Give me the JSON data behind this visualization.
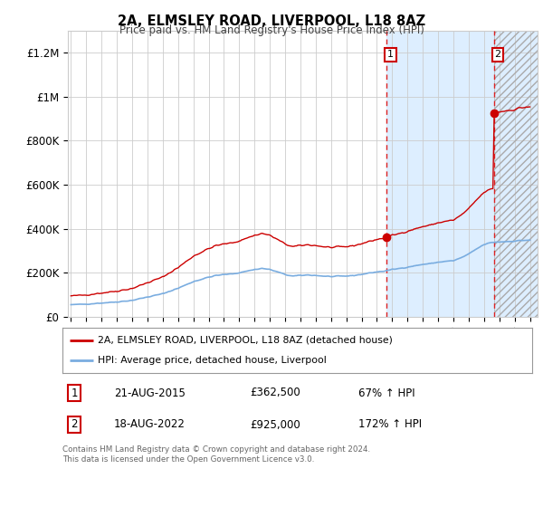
{
  "title": "2A, ELMSLEY ROAD, LIVERPOOL, L18 8AZ",
  "subtitle": "Price paid vs. HM Land Registry's House Price Index (HPI)",
  "ylabel_ticks": [
    "£0",
    "£200K",
    "£400K",
    "£600K",
    "£800K",
    "£1M",
    "£1.2M"
  ],
  "ytick_values": [
    0,
    200000,
    400000,
    600000,
    800000,
    1000000,
    1200000
  ],
  "ylim": [
    0,
    1300000
  ],
  "xlim_start": 1994.8,
  "xlim_end": 2025.5,
  "hpi_color": "#7aade0",
  "property_color": "#cc0000",
  "shaded_color": "#ddeeff",
  "hatch_color": "#cccccc",
  "legend_label1": "2A, ELMSLEY ROAD, LIVERPOOL, L18 8AZ (detached house)",
  "legend_label2": "HPI: Average price, detached house, Liverpool",
  "annotation1_date": "21-AUG-2015",
  "annotation1_price": "£362,500",
  "annotation1_hpi": "67% ↑ HPI",
  "annotation2_date": "18-AUG-2022",
  "annotation2_price": "£925,000",
  "annotation2_hpi": "172% ↑ HPI",
  "footer": "Contains HM Land Registry data © Crown copyright and database right 2024.\nThis data is licensed under the Open Government Licence v3.0.",
  "sale1_x": 2015.64,
  "sale1_y": 362500,
  "sale2_x": 2022.64,
  "sale2_y": 925000,
  "shaded_start": 2015.64,
  "shaded_end": 2025.5,
  "hatch_start": 2022.64,
  "hatch_end": 2025.5,
  "bg_color": "#ffffff",
  "grid_color": "#cccccc"
}
